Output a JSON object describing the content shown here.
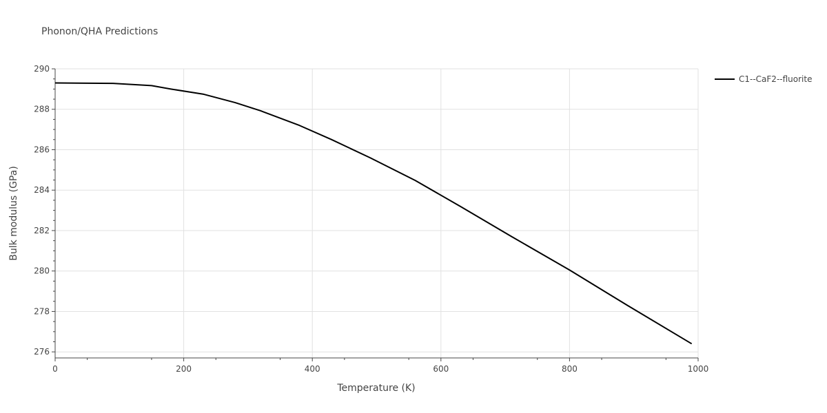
{
  "chart_data": {
    "type": "line",
    "title": "Phonon/QHA Predictions",
    "xlabel": "Temperature (K)",
    "ylabel": "Bulk modulus (GPa)",
    "xlim": [
      0,
      1000
    ],
    "ylim": [
      275.7,
      290
    ],
    "x_ticks": [
      0,
      200,
      400,
      600,
      800,
      1000
    ],
    "y_ticks": [
      276,
      278,
      280,
      282,
      284,
      286,
      288,
      290
    ],
    "grid": true,
    "legend_position": "top-right",
    "series": [
      {
        "name": "C1--CaF2--fluorite",
        "color": "#000000",
        "x": [
          0,
          50,
          90,
          150,
          180,
          230,
          280,
          320,
          380,
          430,
          490,
          560,
          630,
          710,
          800,
          890,
          990
        ],
        "y": [
          289.3,
          289.29,
          289.28,
          289.17,
          289.0,
          288.75,
          288.33,
          287.92,
          287.2,
          286.5,
          285.6,
          284.48,
          283.2,
          281.7,
          280.05,
          278.3,
          276.4
        ]
      }
    ]
  }
}
